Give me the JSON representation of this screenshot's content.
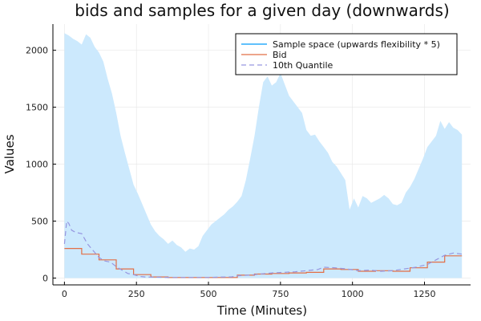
{
  "chart_data": {
    "type": "line",
    "title": "bids and samples for a given day (downwards)",
    "xlabel": "Time (Minutes)",
    "ylabel": "Values",
    "xlim": [
      -40,
      1410
    ],
    "ylim": [
      -60,
      2230
    ],
    "xticks": [
      0,
      250,
      500,
      750,
      1000,
      1250
    ],
    "yticks": [
      0,
      500,
      1000,
      1500,
      2000
    ],
    "grid": true,
    "legend_position": "top-right",
    "series": [
      {
        "name": "Sample space (upwards flexibility * 5)",
        "kind": "band",
        "color": "#009AFA",
        "fill_color": "#CCE9FD",
        "x": [
          0,
          15,
          30,
          45,
          60,
          75,
          90,
          105,
          120,
          135,
          150,
          165,
          180,
          195,
          210,
          225,
          240,
          255,
          270,
          285,
          300,
          315,
          330,
          345,
          360,
          375,
          390,
          405,
          420,
          435,
          450,
          465,
          480,
          495,
          510,
          525,
          540,
          555,
          570,
          585,
          600,
          615,
          630,
          645,
          660,
          675,
          690,
          705,
          720,
          735,
          750,
          765,
          780,
          795,
          810,
          825,
          840,
          855,
          870,
          885,
          900,
          915,
          930,
          945,
          960,
          975,
          990,
          1005,
          1020,
          1035,
          1050,
          1065,
          1080,
          1095,
          1110,
          1125,
          1140,
          1155,
          1170,
          1185,
          1200,
          1215,
          1230,
          1245,
          1260,
          1275,
          1290,
          1305,
          1320,
          1335,
          1350,
          1365,
          1380
        ],
        "upper": [
          2150,
          2130,
          2100,
          2080,
          2050,
          2140,
          2110,
          2030,
          1980,
          1900,
          1750,
          1620,
          1450,
          1250,
          1100,
          960,
          820,
          740,
          650,
          560,
          470,
          410,
          370,
          340,
          300,
          330,
          290,
          270,
          230,
          260,
          250,
          280,
          370,
          420,
          470,
          500,
          530,
          560,
          600,
          630,
          670,
          720,
          860,
          1050,
          1250,
          1500,
          1720,
          1770,
          1690,
          1720,
          1800,
          1700,
          1600,
          1550,
          1500,
          1450,
          1300,
          1250,
          1260,
          1200,
          1150,
          1100,
          1020,
          980,
          920,
          860,
          600,
          700,
          620,
          720,
          700,
          660,
          680,
          700,
          730,
          700,
          650,
          640,
          660,
          750,
          800,
          870,
          960,
          1050,
          1150,
          1200,
          1250,
          1380,
          1310,
          1370,
          1320,
          1300,
          1260
        ],
        "lower": [
          0,
          0,
          0,
          0,
          0,
          0,
          0,
          0,
          0,
          0,
          0,
          0,
          0,
          0,
          0,
          0,
          0,
          0,
          0,
          0,
          0,
          0,
          0,
          0,
          0,
          0,
          0,
          0,
          0,
          0,
          0,
          0,
          0,
          0,
          0,
          0,
          0,
          0,
          0,
          0,
          0,
          0,
          0,
          0,
          0,
          0,
          0,
          0,
          0,
          0,
          0,
          0,
          0,
          0,
          0,
          0,
          0,
          0,
          0,
          0,
          0,
          0,
          0,
          0,
          0,
          0,
          0,
          0,
          0,
          0,
          0,
          0,
          0,
          0,
          0,
          0,
          0,
          0,
          0,
          0,
          0,
          0,
          0,
          0,
          0,
          0,
          0,
          0,
          0,
          0,
          0,
          0,
          0
        ]
      },
      {
        "name": "Bid",
        "kind": "step",
        "color": "#E26F46",
        "x": [
          0,
          60,
          120,
          180,
          240,
          300,
          360,
          420,
          480,
          540,
          600,
          660,
          720,
          780,
          840,
          900,
          960,
          1020,
          1080,
          1140,
          1200,
          1260,
          1320,
          1380
        ],
        "y": [
          260,
          210,
          160,
          80,
          30,
          10,
          5,
          5,
          5,
          5,
          25,
          35,
          40,
          45,
          50,
          80,
          75,
          60,
          65,
          60,
          90,
          140,
          195,
          195
        ]
      },
      {
        "name": "10th Quantile",
        "kind": "dashed",
        "color": "#9696E0",
        "x": [
          0,
          8,
          15,
          25,
          40,
          60,
          80,
          100,
          120,
          140,
          160,
          180,
          200,
          220,
          240,
          260,
          280,
          300,
          340,
          380,
          420,
          460,
          500,
          540,
          580,
          600,
          640,
          680,
          720,
          760,
          800,
          840,
          880,
          900,
          940,
          980,
          1020,
          1060,
          1100,
          1140,
          1180,
          1220,
          1260,
          1290,
          1320,
          1350,
          1380
        ],
        "y": [
          300,
          500,
          480,
          420,
          400,
          390,
          300,
          240,
          180,
          150,
          140,
          100,
          70,
          40,
          30,
          15,
          10,
          8,
          6,
          5,
          5,
          5,
          5,
          8,
          10,
          20,
          25,
          35,
          45,
          50,
          55,
          65,
          75,
          95,
          90,
          80,
          65,
          70,
          60,
          65,
          80,
          95,
          120,
          160,
          200,
          220,
          210
        ]
      }
    ]
  }
}
